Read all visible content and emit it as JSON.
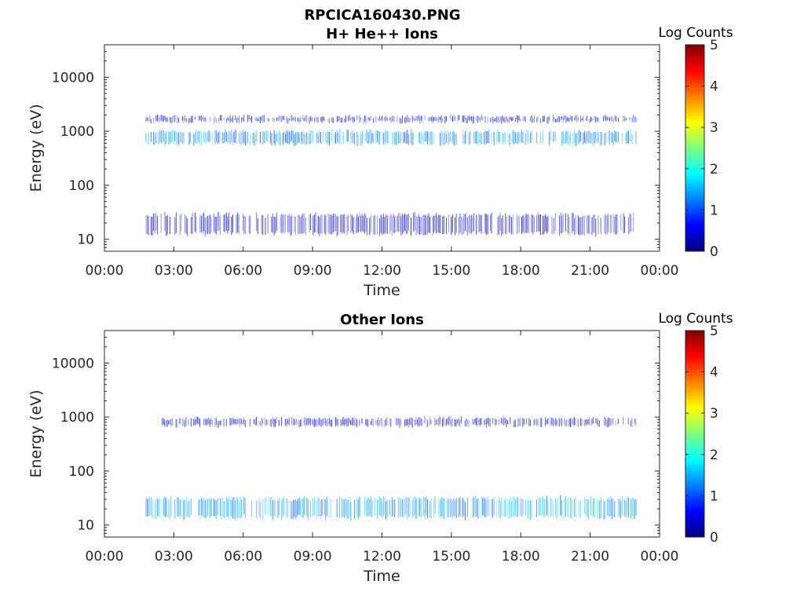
{
  "figure": {
    "filename_title": "RPCICA160430.PNG"
  },
  "chart_data": [
    {
      "type": "heatmap",
      "title": "H+ He++ Ions",
      "xlabel": "Time",
      "ylabel": "Energy (eV)",
      "x_ticks": [
        "00:00",
        "03:00",
        "06:00",
        "09:00",
        "12:00",
        "15:00",
        "18:00",
        "21:00",
        "00:00"
      ],
      "y_ticks": [
        "10",
        "100",
        "1000",
        "10000"
      ],
      "y_scale": "log",
      "ylim": [
        6,
        40000
      ],
      "xlim_hours": [
        0,
        24
      ],
      "colorbar": {
        "label": "Log Counts",
        "ticks": [
          "0",
          "1",
          "2",
          "3",
          "4",
          "5"
        ],
        "range": [
          0,
          5
        ],
        "colormap": "jet"
      },
      "bands": [
        {
          "desc": "main band",
          "t_start": 1.8,
          "t_end": 23.0,
          "energy_low": 550,
          "energy_high": 1050,
          "log_counts": 1.3
        },
        {
          "desc": "upper band",
          "t_start": 1.8,
          "t_end": 23.0,
          "energy_low": 1400,
          "energy_high": 2000,
          "log_counts": 0.5
        },
        {
          "desc": "low-energy band",
          "t_start": 1.8,
          "t_end": 23.0,
          "energy_low": 12,
          "energy_high": 30,
          "log_counts": 0.3
        }
      ]
    },
    {
      "type": "heatmap",
      "title": "Other Ions",
      "xlabel": "Time",
      "ylabel": "Energy (eV)",
      "x_ticks": [
        "00:00",
        "03:00",
        "06:00",
        "09:00",
        "12:00",
        "15:00",
        "18:00",
        "21:00",
        "00:00"
      ],
      "y_ticks": [
        "10",
        "100",
        "1000",
        "10000"
      ],
      "y_scale": "log",
      "ylim": [
        6,
        40000
      ],
      "xlim_hours": [
        0,
        24
      ],
      "colorbar": {
        "label": "Log Counts",
        "ticks": [
          "0",
          "1",
          "2",
          "3",
          "4",
          "5"
        ],
        "range": [
          0,
          5
        ],
        "colormap": "jet"
      },
      "bands": [
        {
          "desc": "main low-energy band",
          "t_start": 1.8,
          "t_end": 23.0,
          "energy_low": 13,
          "energy_high": 33,
          "log_counts": 1.4
        },
        {
          "desc": "faint upper band",
          "t_start": 2.5,
          "t_end": 23.0,
          "energy_low": 650,
          "energy_high": 1000,
          "log_counts": 0.4
        }
      ]
    }
  ]
}
